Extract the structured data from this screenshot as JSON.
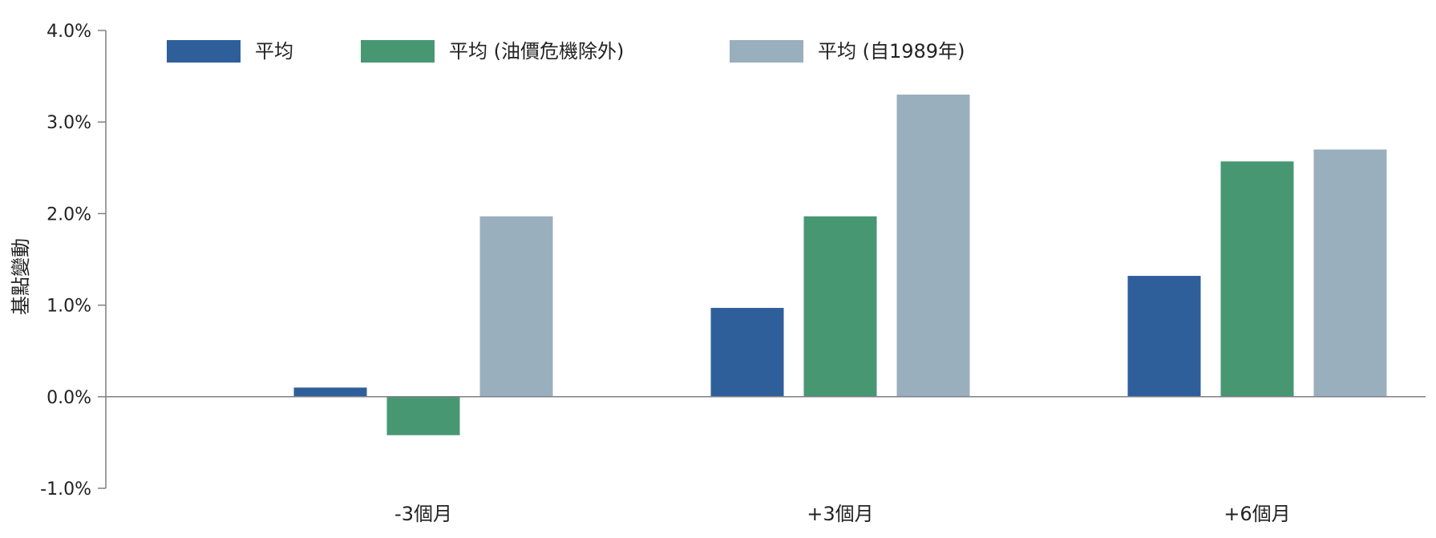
{
  "chart_data": {
    "type": "bar",
    "title": "",
    "xlabel": "",
    "ylabel": "基點變動",
    "categories": [
      "-3個月",
      "+3個月",
      "+6個月"
    ],
    "series": [
      {
        "name": "平均",
        "color": "#2f5f9a",
        "values": [
          0.1,
          0.97,
          1.32
        ]
      },
      {
        "name": "平均 (油價危機除外)",
        "color": "#479872",
        "values": [
          -0.42,
          1.97,
          2.57
        ]
      },
      {
        "name": "平均 (自1989年)",
        "color": "#9aafbe",
        "values": [
          1.97,
          3.3,
          2.7
        ]
      }
    ],
    "ylim": [
      -1.0,
      4.0
    ],
    "yticks": [
      "-1.0%",
      "0.0%",
      "1.0%",
      "2.0%",
      "3.0%",
      "4.0%"
    ],
    "grid": false,
    "legend_position": "top"
  }
}
